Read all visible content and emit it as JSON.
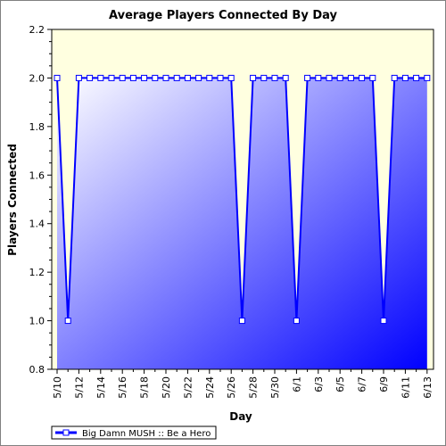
{
  "chart_data": {
    "type": "area",
    "title": "Average Players Connected By Day",
    "xlabel": "Day",
    "ylabel": "Players Connected",
    "ylim": [
      0.8,
      2.2
    ],
    "yticks": [
      "0.8",
      "1.0",
      "1.2",
      "1.4",
      "1.6",
      "1.8",
      "2.0",
      "2.2"
    ],
    "xticks": [
      "5/10",
      "5/12",
      "5/14",
      "5/16",
      "5/18",
      "5/20",
      "5/22",
      "5/24",
      "5/26",
      "5/28",
      "5/30",
      "6/1",
      "6/3",
      "6/5",
      "6/7",
      "6/9",
      "6/11",
      "6/13"
    ],
    "grid": false,
    "legend_position": "bottom-left",
    "x": [
      "5/10",
      "5/11",
      "5/12",
      "5/13",
      "5/14",
      "5/15",
      "5/16",
      "5/17",
      "5/18",
      "5/19",
      "5/20",
      "5/21",
      "5/22",
      "5/23",
      "5/24",
      "5/25",
      "5/26",
      "5/27",
      "5/28",
      "5/29",
      "5/30",
      "5/31",
      "6/1",
      "6/2",
      "6/3",
      "6/4",
      "6/5",
      "6/6",
      "6/7",
      "6/8",
      "6/9",
      "6/10",
      "6/11",
      "6/12",
      "6/13"
    ],
    "series": [
      {
        "name": "Big Damn MUSH :: Be a Hero",
        "values": [
          2.0,
          1.0,
          2.0,
          2.0,
          2.0,
          2.0,
          2.0,
          2.0,
          2.0,
          2.0,
          2.0,
          2.0,
          2.0,
          2.0,
          2.0,
          2.0,
          2.0,
          1.0,
          2.0,
          2.0,
          2.0,
          2.0,
          1.0,
          2.0,
          2.0,
          2.0,
          2.0,
          2.0,
          2.0,
          2.0,
          1.0,
          2.0,
          2.0,
          2.0,
          2.0
        ]
      }
    ],
    "colors": {
      "plot_background": "#ffffe0",
      "line": "#0000ff",
      "fill_light": "#ffffff",
      "fill_dark": "#0000ff"
    }
  }
}
